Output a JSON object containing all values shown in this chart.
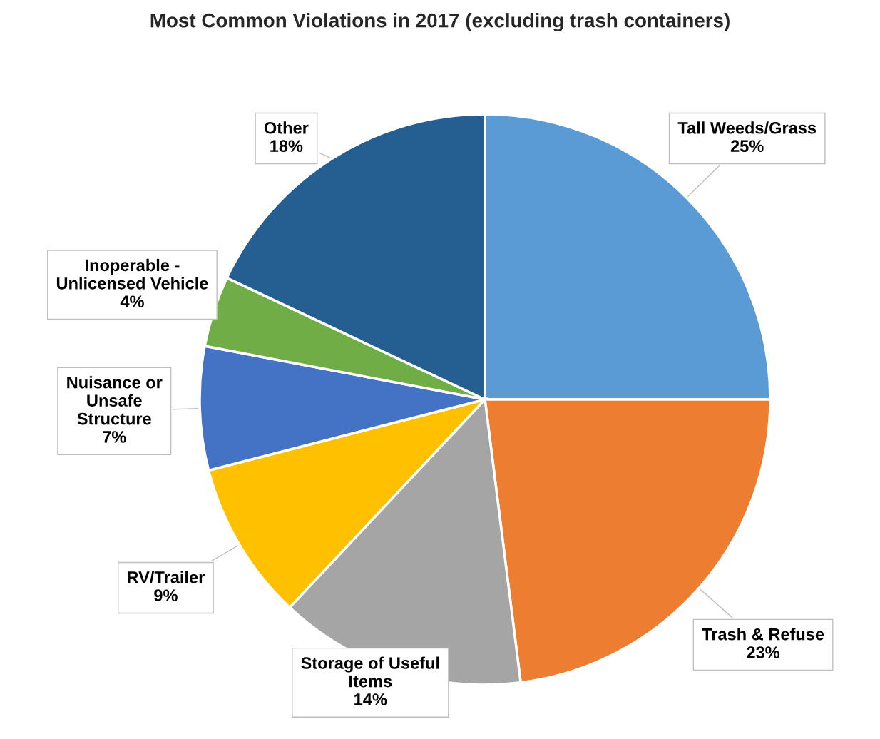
{
  "chart_data": {
    "type": "pie",
    "title": "Most Common Violations in 2017 (excluding trash containers)",
    "categories": [
      "Tall Weeds/Grass",
      "Trash & Refuse",
      "Storage of Useful\nItems",
      "RV/Trailer",
      "Nuisance or\nUnsafe\nStructure",
      "Inoperable -\nUnlicensed Vehicle",
      "Other"
    ],
    "values": [
      25,
      23,
      14,
      9,
      7,
      4,
      18
    ],
    "colors": [
      "#5b9bd5",
      "#ed7d31",
      "#a5a5a5",
      "#ffc000",
      "#4472c4",
      "#70ad47",
      "#255e91"
    ],
    "value_labels": [
      "25%",
      "23%",
      "14%",
      "9%",
      "7%",
      "4%",
      "18%"
    ],
    "legend": false
  }
}
